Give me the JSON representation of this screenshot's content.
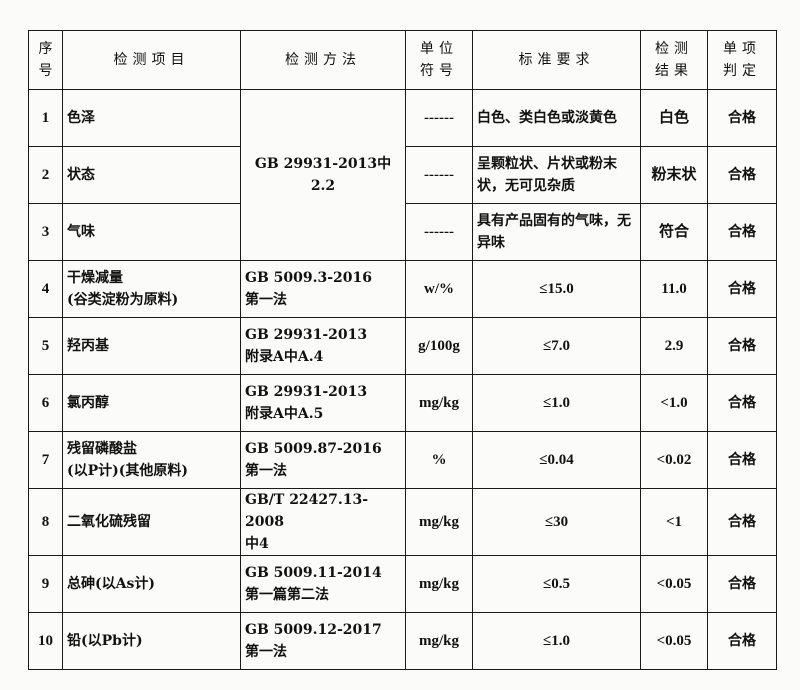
{
  "headers": [
    "序\n号",
    "检测项目",
    "检测方法",
    "单位\n符号",
    "标准要求",
    "检测\n结果",
    "单项\n判定"
  ],
  "merged_method": "GB 29931-2013中2.2",
  "rows": [
    {
      "no": "1",
      "item": "色泽",
      "unit": "------",
      "standard": "白色、类白色或淡黄色",
      "result": "白色",
      "verdict": "合格"
    },
    {
      "no": "2",
      "item": "状态",
      "unit": "------",
      "standard": "呈颗粒状、片状或粉末状，无可见杂质",
      "result": "粉末状",
      "verdict": "合格"
    },
    {
      "no": "3",
      "item": "气味",
      "unit": "------",
      "standard": "具有产品固有的气味，无异味",
      "result": "符合",
      "verdict": "合格"
    },
    {
      "no": "4",
      "item": "干燥减量\n(谷类淀粉为原料)",
      "method": "GB 5009.3-2016\n第一法",
      "unit": "w/%",
      "standard": "≤15.0",
      "result": "11.0",
      "verdict": "合格"
    },
    {
      "no": "5",
      "item": "羟丙基",
      "method": "GB 29931-2013\n附录A中A.4",
      "unit": "g/100g",
      "standard": "≤7.0",
      "result": "2.9",
      "verdict": "合格"
    },
    {
      "no": "6",
      "item": "氯丙醇",
      "method": "GB 29931-2013\n附录A中A.5",
      "unit": "mg/kg",
      "standard": "≤1.0",
      "result": "<1.0",
      "verdict": "合格"
    },
    {
      "no": "7",
      "item": "残留磷酸盐\n(以P计)(其他原料)",
      "method": "GB 5009.87-2016\n第一法",
      "unit": "%",
      "standard": "≤0.04",
      "result": "<0.02",
      "verdict": "合格"
    },
    {
      "no": "8",
      "item": "二氧化硫残留",
      "method": "GB/T 22427.13-2008\n中4",
      "unit": "mg/kg",
      "standard": "≤30",
      "result": "<1",
      "verdict": "合格"
    },
    {
      "no": "9",
      "item": "总砷(以As计)",
      "method": "GB 5009.11-2014\n第一篇第二法",
      "unit": "mg/kg",
      "standard": "≤0.5",
      "result": "<0.05",
      "verdict": "合格"
    },
    {
      "no": "10",
      "item": "铅(以Pb计)",
      "method": "GB 5009.12-2017\n第一法",
      "unit": "mg/kg",
      "standard": "≤1.0",
      "result": "<0.05",
      "verdict": "合格"
    }
  ]
}
